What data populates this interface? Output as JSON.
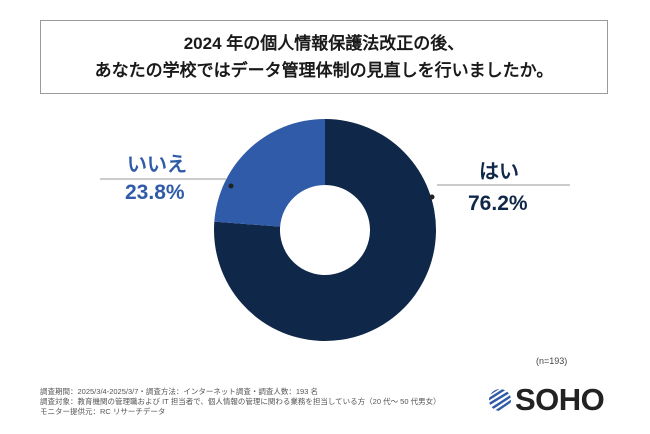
{
  "title": {
    "line1": "2024 年の個人情報保護法改正の後、",
    "line2": "あなたの学校ではデータ管理体制の見直しを行いましたか。"
  },
  "chart_data": {
    "type": "pie",
    "donut": true,
    "categories": [
      "はい",
      "いいえ"
    ],
    "values": [
      76.2,
      23.8
    ],
    "labels": [
      "76.2%",
      "23.8%"
    ],
    "colors": [
      "#0f2748",
      "#2f5ba8"
    ],
    "legend": "none"
  },
  "sample": "(n=193)",
  "notes": [
    "調査期間：2025/3/4-2025/3/7・調査方法：インターネット調査・調査人数：193 名",
    "調査対象：教育機関の管理職および IT 担当者で、個人情報の管理に関わる業務を担当している方（20 代～ 50 代男女）",
    "モニター提供元：RC リサーチデータ"
  ],
  "logo": {
    "text": "SOHO",
    "color": "#2f5ba8"
  }
}
